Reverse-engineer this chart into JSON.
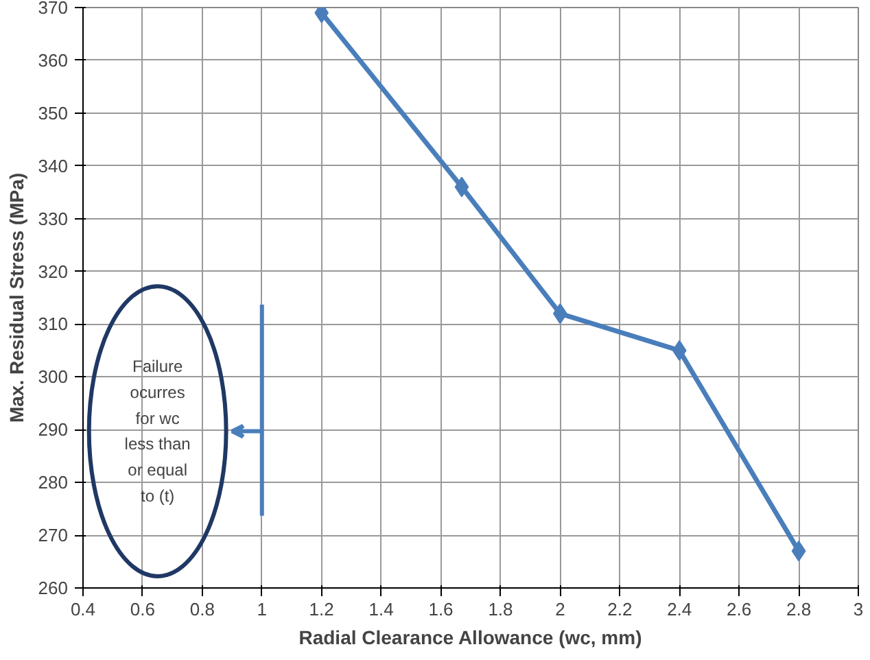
{
  "chart_data": {
    "type": "line",
    "xlabel": "Radial Clearance Allowance (wc, mm)",
    "ylabel": "Max. Residual Stress (MPa)",
    "x": [
      1.2,
      1.67,
      2.0,
      2.4,
      2.8
    ],
    "series": [
      {
        "color": "#4a7ebb",
        "values": [
          369,
          336,
          312,
          305,
          267
        ]
      }
    ],
    "xlim": [
      0.4,
      3
    ],
    "xticks": [
      0.4,
      0.6,
      0.8,
      1,
      1.2,
      1.4,
      1.6,
      1.8,
      2,
      2.2,
      2.4,
      2.6,
      2.8,
      3
    ],
    "ylim": [
      260,
      370
    ],
    "yticks": [
      260,
      270,
      280,
      290,
      300,
      310,
      320,
      330,
      340,
      350,
      360,
      370
    ],
    "grid": true,
    "marker": "diamond",
    "line_style": "solid",
    "ref_lines": [
      {
        "axis": "x",
        "value": 1,
        "color": "#4a7ebb"
      }
    ],
    "annotations": [
      "Failure ocurres for wc less than or equal to (t)"
    ]
  }
}
